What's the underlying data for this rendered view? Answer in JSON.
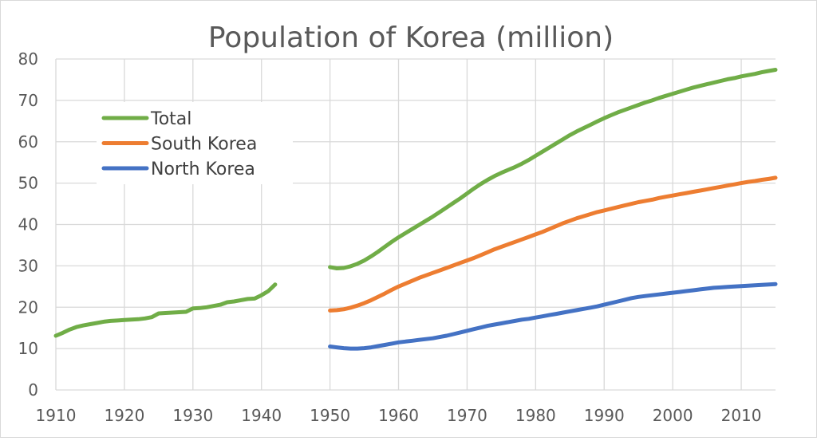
{
  "chart_data": {
    "type": "line",
    "title": "Population of Korea (million)",
    "xlabel": "",
    "ylabel": "",
    "xlim": [
      1910,
      2015
    ],
    "ylim": [
      0,
      80
    ],
    "x_ticks": [
      1910,
      1920,
      1930,
      1940,
      1950,
      1960,
      1970,
      1980,
      1990,
      2000,
      2010
    ],
    "y_ticks": [
      0,
      10,
      20,
      30,
      40,
      50,
      60,
      70,
      80
    ],
    "grid": true,
    "legend_position": "top-left",
    "series": [
      {
        "name": "Total",
        "color": "#70ad47",
        "segments": [
          [
            [
              1910,
              13.1
            ],
            [
              1911,
              13.8
            ],
            [
              1912,
              14.6
            ],
            [
              1913,
              15.2
            ],
            [
              1914,
              15.6
            ],
            [
              1915,
              15.9
            ],
            [
              1916,
              16.2
            ],
            [
              1917,
              16.5
            ],
            [
              1918,
              16.7
            ],
            [
              1919,
              16.8
            ],
            [
              1920,
              16.9
            ],
            [
              1921,
              17.0
            ],
            [
              1922,
              17.1
            ],
            [
              1923,
              17.3
            ],
            [
              1924,
              17.6
            ],
            [
              1925,
              18.5
            ],
            [
              1926,
              18.6
            ],
            [
              1927,
              18.7
            ],
            [
              1928,
              18.8
            ],
            [
              1929,
              18.9
            ],
            [
              1930,
              19.7
            ],
            [
              1931,
              19.8
            ],
            [
              1932,
              20.0
            ],
            [
              1933,
              20.3
            ],
            [
              1934,
              20.6
            ],
            [
              1935,
              21.2
            ],
            [
              1936,
              21.4
            ],
            [
              1937,
              21.7
            ],
            [
              1938,
              22.0
            ],
            [
              1939,
              22.1
            ],
            [
              1940,
              22.9
            ],
            [
              1941,
              23.9
            ],
            [
              1942,
              25.5
            ]
          ],
          [
            [
              1950,
              29.7
            ],
            [
              1951,
              29.4
            ],
            [
              1952,
              29.5
            ],
            [
              1953,
              29.9
            ],
            [
              1954,
              30.5
            ],
            [
              1955,
              31.3
            ],
            [
              1956,
              32.3
            ],
            [
              1957,
              33.4
            ],
            [
              1958,
              34.6
            ],
            [
              1959,
              35.8
            ],
            [
              1960,
              36.9
            ],
            [
              1961,
              37.9
            ],
            [
              1962,
              38.9
            ],
            [
              1963,
              39.9
            ],
            [
              1964,
              40.9
            ],
            [
              1965,
              41.9
            ],
            [
              1966,
              43.0
            ],
            [
              1967,
              44.1
            ],
            [
              1968,
              45.2
            ],
            [
              1969,
              46.3
            ],
            [
              1970,
              47.5
            ],
            [
              1971,
              48.7
            ],
            [
              1972,
              49.8
            ],
            [
              1973,
              50.8
            ],
            [
              1974,
              51.7
            ],
            [
              1975,
              52.5
            ],
            [
              1976,
              53.2
            ],
            [
              1977,
              53.9
            ],
            [
              1978,
              54.7
            ],
            [
              1979,
              55.6
            ],
            [
              1980,
              56.6
            ],
            [
              1981,
              57.6
            ],
            [
              1982,
              58.6
            ],
            [
              1983,
              59.6
            ],
            [
              1984,
              60.6
            ],
            [
              1985,
              61.6
            ],
            [
              1986,
              62.5
            ],
            [
              1987,
              63.3
            ],
            [
              1988,
              64.1
            ],
            [
              1989,
              64.9
            ],
            [
              1990,
              65.7
            ],
            [
              1991,
              66.4
            ],
            [
              1992,
              67.1
            ],
            [
              1993,
              67.7
            ],
            [
              1994,
              68.3
            ],
            [
              1995,
              68.9
            ],
            [
              1996,
              69.5
            ],
            [
              1997,
              70.0
            ],
            [
              1998,
              70.6
            ],
            [
              1999,
              71.1
            ],
            [
              2000,
              71.6
            ],
            [
              2001,
              72.1
            ],
            [
              2002,
              72.6
            ],
            [
              2003,
              73.1
            ],
            [
              2004,
              73.5
            ],
            [
              2005,
              73.9
            ],
            [
              2006,
              74.3
            ],
            [
              2007,
              74.7
            ],
            [
              2008,
              75.1
            ],
            [
              2009,
              75.4
            ],
            [
              2010,
              75.8
            ],
            [
              2011,
              76.1
            ],
            [
              2012,
              76.4
            ],
            [
              2013,
              76.8
            ],
            [
              2014,
              77.1
            ],
            [
              2015,
              77.4
            ]
          ]
        ]
      },
      {
        "name": "South Korea",
        "color": "#ed7d31",
        "segments": [
          [
            [
              1950,
              19.2
            ],
            [
              1951,
              19.3
            ],
            [
              1952,
              19.5
            ],
            [
              1953,
              19.9
            ],
            [
              1954,
              20.4
            ],
            [
              1955,
              21.0
            ],
            [
              1956,
              21.7
            ],
            [
              1957,
              22.5
            ],
            [
              1958,
              23.3
            ],
            [
              1959,
              24.2
            ],
            [
              1960,
              25.0
            ],
            [
              1961,
              25.7
            ],
            [
              1962,
              26.4
            ],
            [
              1963,
              27.1
            ],
            [
              1964,
              27.7
            ],
            [
              1965,
              28.3
            ],
            [
              1966,
              28.9
            ],
            [
              1967,
              29.5
            ],
            [
              1968,
              30.1
            ],
            [
              1969,
              30.7
            ],
            [
              1970,
              31.3
            ],
            [
              1971,
              31.9
            ],
            [
              1972,
              32.6
            ],
            [
              1973,
              33.3
            ],
            [
              1974,
              34.0
            ],
            [
              1975,
              34.6
            ],
            [
              1976,
              35.2
            ],
            [
              1977,
              35.8
            ],
            [
              1978,
              36.4
            ],
            [
              1979,
              37.0
            ],
            [
              1980,
              37.6
            ],
            [
              1981,
              38.2
            ],
            [
              1982,
              38.9
            ],
            [
              1983,
              39.6
            ],
            [
              1984,
              40.3
            ],
            [
              1985,
              40.9
            ],
            [
              1986,
              41.5
            ],
            [
              1987,
              42.0
            ],
            [
              1988,
              42.5
            ],
            [
              1989,
              43.0
            ],
            [
              1990,
              43.4
            ],
            [
              1991,
              43.8
            ],
            [
              1992,
              44.2
            ],
            [
              1993,
              44.6
            ],
            [
              1994,
              45.0
            ],
            [
              1995,
              45.4
            ],
            [
              1996,
              45.7
            ],
            [
              1997,
              46.0
            ],
            [
              1998,
              46.4
            ],
            [
              1999,
              46.7
            ],
            [
              2000,
              47.0
            ],
            [
              2001,
              47.3
            ],
            [
              2002,
              47.6
            ],
            [
              2003,
              47.9
            ],
            [
              2004,
              48.2
            ],
            [
              2005,
              48.5
            ],
            [
              2006,
              48.8
            ],
            [
              2007,
              49.1
            ],
            [
              2008,
              49.4
            ],
            [
              2009,
              49.7
            ],
            [
              2010,
              50.0
            ],
            [
              2011,
              50.3
            ],
            [
              2012,
              50.5
            ],
            [
              2013,
              50.8
            ],
            [
              2014,
              51.0
            ],
            [
              2015,
              51.3
            ]
          ]
        ]
      },
      {
        "name": "North Korea",
        "color": "#4472c4",
        "segments": [
          [
            [
              1950,
              10.5
            ],
            [
              1951,
              10.3
            ],
            [
              1952,
              10.1
            ],
            [
              1953,
              10.0
            ],
            [
              1954,
              10.0
            ],
            [
              1955,
              10.1
            ],
            [
              1956,
              10.3
            ],
            [
              1957,
              10.6
            ],
            [
              1958,
              10.9
            ],
            [
              1959,
              11.2
            ],
            [
              1960,
              11.5
            ],
            [
              1961,
              11.7
            ],
            [
              1962,
              11.9
            ],
            [
              1963,
              12.1
            ],
            [
              1964,
              12.3
            ],
            [
              1965,
              12.5
            ],
            [
              1966,
              12.8
            ],
            [
              1967,
              13.1
            ],
            [
              1968,
              13.5
            ],
            [
              1969,
              13.9
            ],
            [
              1970,
              14.3
            ],
            [
              1971,
              14.7
            ],
            [
              1972,
              15.1
            ],
            [
              1973,
              15.5
            ],
            [
              1974,
              15.8
            ],
            [
              1975,
              16.1
            ],
            [
              1976,
              16.4
            ],
            [
              1977,
              16.7
            ],
            [
              1978,
              17.0
            ],
            [
              1979,
              17.2
            ],
            [
              1980,
              17.5
            ],
            [
              1981,
              17.8
            ],
            [
              1982,
              18.1
            ],
            [
              1983,
              18.4
            ],
            [
              1984,
              18.7
            ],
            [
              1985,
              19.0
            ],
            [
              1986,
              19.3
            ],
            [
              1987,
              19.6
            ],
            [
              1988,
              19.9
            ],
            [
              1989,
              20.2
            ],
            [
              1990,
              20.6
            ],
            [
              1991,
              21.0
            ],
            [
              1992,
              21.4
            ],
            [
              1993,
              21.8
            ],
            [
              1994,
              22.2
            ],
            [
              1995,
              22.5
            ],
            [
              1996,
              22.7
            ],
            [
              1997,
              22.9
            ],
            [
              1998,
              23.1
            ],
            [
              1999,
              23.3
            ],
            [
              2000,
              23.5
            ],
            [
              2001,
              23.7
            ],
            [
              2002,
              23.9
            ],
            [
              2003,
              24.1
            ],
            [
              2004,
              24.3
            ],
            [
              2005,
              24.5
            ],
            [
              2006,
              24.7
            ],
            [
              2007,
              24.8
            ],
            [
              2008,
              24.9
            ],
            [
              2009,
              25.0
            ],
            [
              2010,
              25.1
            ],
            [
              2011,
              25.2
            ],
            [
              2012,
              25.3
            ],
            [
              2013,
              25.4
            ],
            [
              2014,
              25.5
            ],
            [
              2015,
              25.6
            ]
          ]
        ]
      }
    ]
  }
}
